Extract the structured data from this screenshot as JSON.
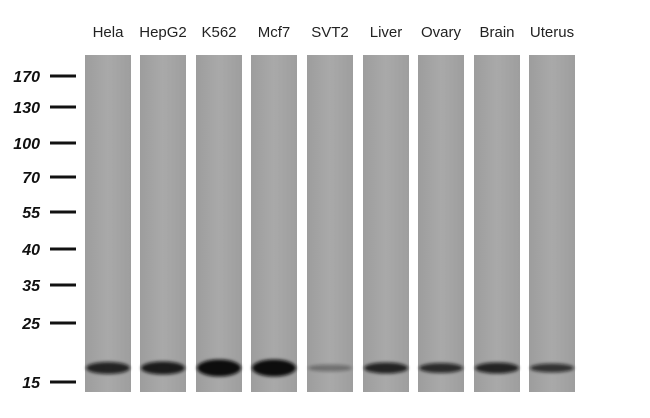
{
  "lanes": [
    "Hela",
    "HepG2",
    "K562",
    "Mcf7",
    "SVT2",
    "Liver",
    "Ovary",
    "Brain",
    "Uterus"
  ],
  "markers": [
    "170",
    "130",
    "100",
    "70",
    "55",
    "40",
    "35",
    "25",
    "15"
  ]
}
